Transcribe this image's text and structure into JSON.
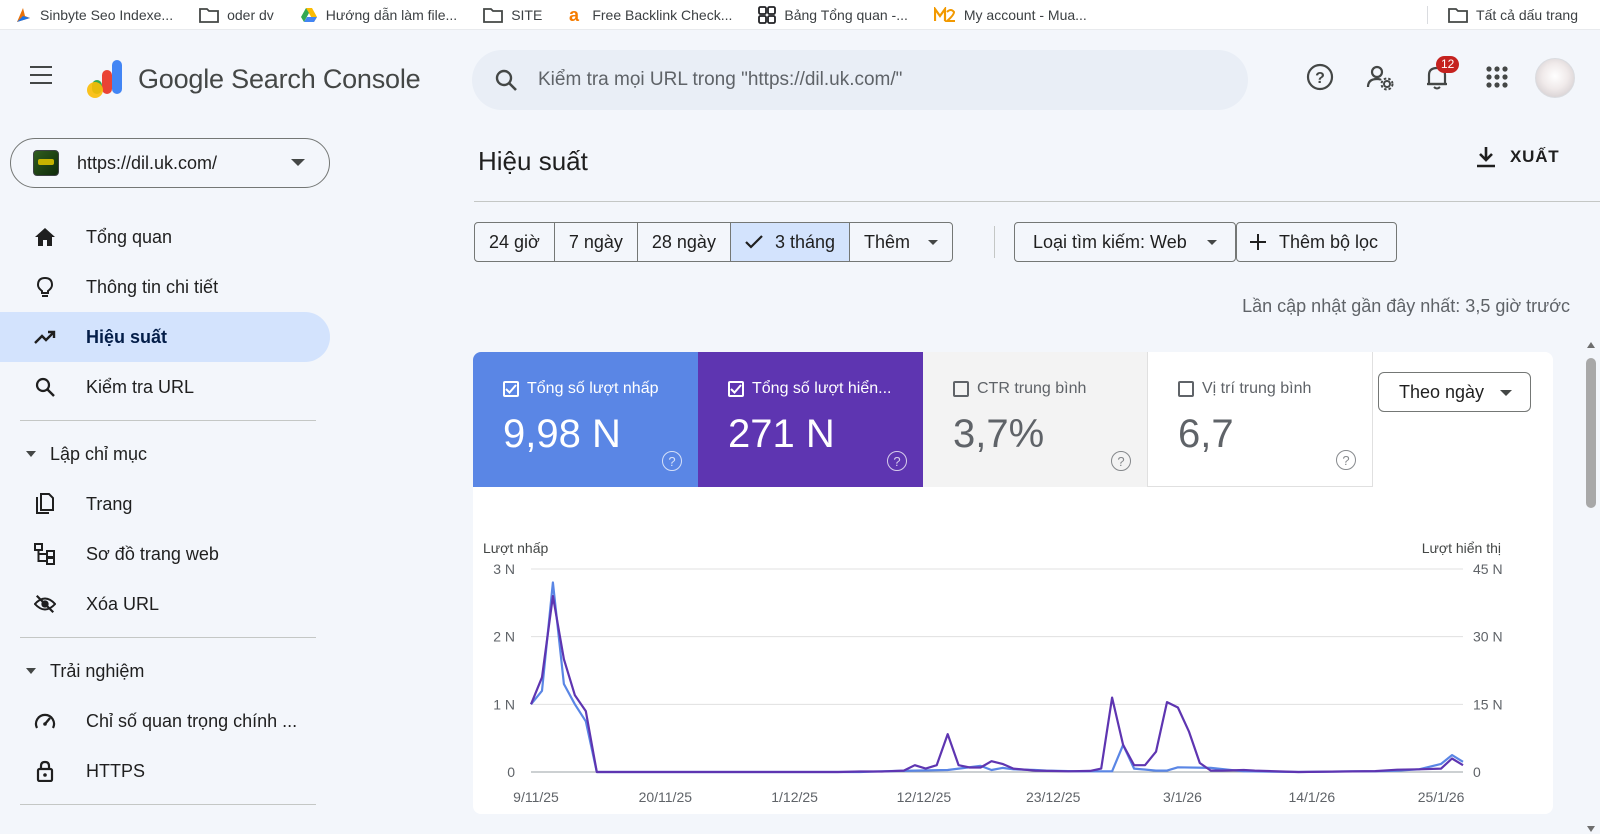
{
  "bookmarks": {
    "items": [
      {
        "label": "Sinbyte Seo Indexe...",
        "icon": "sinbyte-favicon"
      },
      {
        "label": "oder dv",
        "icon": "folder-icon"
      },
      {
        "label": "Hướng dẫn làm file...",
        "icon": "google-drive-icon"
      },
      {
        "label": "SITE",
        "icon": "folder-icon"
      },
      {
        "label": "Free Backlink Check...",
        "icon": "ahrefs-favicon"
      },
      {
        "label": "Bảng Tổng quan -...",
        "icon": "grid-favicon"
      },
      {
        "label": "My account - Mua...",
        "icon": "m2-favicon"
      }
    ],
    "all_bookmarks": "Tất cả dấu trang"
  },
  "header": {
    "app_name": "Google Search Console",
    "search_placeholder": "Kiểm tra mọi URL trong \"https://dil.uk.com/\"",
    "notification_count": "12"
  },
  "property": {
    "url": "https://dil.uk.com/"
  },
  "sidebar": {
    "items": [
      {
        "label": "Tổng quan",
        "icon": "home-icon"
      },
      {
        "label": "Thông tin chi tiết",
        "icon": "lightbulb-icon"
      },
      {
        "label": "Hiệu suất",
        "icon": "trending-up-icon",
        "active": true
      },
      {
        "label": "Kiểm tra URL",
        "icon": "search-icon"
      }
    ],
    "section_indexing": "Lập chỉ mục",
    "indexing_items": [
      {
        "label": "Trang",
        "icon": "pages-icon"
      },
      {
        "label": "Sơ đồ trang web",
        "icon": "sitemap-icon"
      },
      {
        "label": "Xóa URL",
        "icon": "eye-off-icon"
      }
    ],
    "section_experience": "Trải nghiệm",
    "experience_items": [
      {
        "label": "Chỉ số quan trọng chính ...",
        "icon": "speed-icon"
      },
      {
        "label": "HTTPS",
        "icon": "lock-icon"
      }
    ]
  },
  "main": {
    "title": "Hiệu suất",
    "export_label": "XUẤT",
    "date_chips": [
      "24 giờ",
      "7 ngày",
      "28 ngày",
      "3 tháng",
      "Thêm"
    ],
    "selected_chip": "3 tháng",
    "search_type": "Loại tìm kiếm: Web",
    "add_filter": "Thêm bộ lọc",
    "last_updated": "Lần cập nhật gần đây nhất: 3,5 giờ trước",
    "metrics": [
      {
        "label": "Tổng số lượt nhấp",
        "value": "9,98 N",
        "checked": true,
        "color": "#5a86e5"
      },
      {
        "label": "Tổng số lượt hiển...",
        "value": "271 N",
        "checked": true,
        "color": "#5e35b1"
      },
      {
        "label": "CTR trung bình",
        "value": "3,7%",
        "checked": false
      },
      {
        "label": "Vị trí trung bình",
        "value": "6,7",
        "checked": false
      }
    ],
    "granularity": "Theo ngày"
  },
  "chart_data": {
    "type": "line",
    "ylabel_left": "Lượt nhấp",
    "ylabel_right": "Lượt hiển thị",
    "y_left_ticks": [
      "0",
      "1 N",
      "2 N",
      "3 N"
    ],
    "y_left_range": [
      0,
      3000
    ],
    "y_right_ticks": [
      "0",
      "15 N",
      "30 N",
      "45 N"
    ],
    "y_right_range": [
      0,
      45000
    ],
    "x_ticks": [
      "9/11/25",
      "20/11/25",
      "1/12/25",
      "12/12/25",
      "23/12/25",
      "3/1/26",
      "14/1/26",
      "25/1/26"
    ],
    "x_start": "2025-11-09",
    "x_end": "2026-01-25",
    "grid": true,
    "series": [
      {
        "name": "Lượt nhấp",
        "axis": "left",
        "color": "#5a86e5",
        "points": [
          [
            0,
            1000
          ],
          [
            1,
            1200
          ],
          [
            2,
            2800
          ],
          [
            3,
            1300
          ],
          [
            4,
            1000
          ],
          [
            5,
            750
          ],
          [
            6,
            0
          ],
          [
            30,
            0
          ],
          [
            32,
            10
          ],
          [
            35,
            20
          ],
          [
            38,
            30
          ],
          [
            41,
            90
          ],
          [
            42,
            30
          ],
          [
            43,
            60
          ],
          [
            44,
            40
          ],
          [
            46,
            30
          ],
          [
            47,
            20
          ],
          [
            50,
            10
          ],
          [
            53,
            10
          ],
          [
            54,
            400
          ],
          [
            55,
            50
          ],
          [
            57,
            20
          ],
          [
            58,
            20
          ],
          [
            59,
            70
          ],
          [
            62,
            60
          ],
          [
            65,
            10
          ],
          [
            70,
            0
          ],
          [
            75,
            10
          ],
          [
            77,
            10
          ],
          [
            79,
            20
          ],
          [
            81,
            40
          ],
          [
            83,
            120
          ],
          [
            84,
            250
          ],
          [
            85,
            150
          ]
        ]
      },
      {
        "name": "Lượt hiển thị",
        "axis": "right",
        "color": "#5e35b1",
        "points": [
          [
            0,
            15000
          ],
          [
            1,
            21000
          ],
          [
            2,
            39000
          ],
          [
            3,
            25000
          ],
          [
            4,
            17000
          ],
          [
            5,
            13500
          ],
          [
            6,
            0
          ],
          [
            28,
            0
          ],
          [
            30,
            100
          ],
          [
            32,
            100
          ],
          [
            34,
            300
          ],
          [
            35,
            1500
          ],
          [
            36,
            750
          ],
          [
            37,
            1500
          ],
          [
            38,
            8400
          ],
          [
            39,
            1500
          ],
          [
            40,
            1000
          ],
          [
            41,
            1000
          ],
          [
            42,
            2400
          ],
          [
            43,
            1800
          ],
          [
            44,
            750
          ],
          [
            46,
            300
          ],
          [
            49,
            150
          ],
          [
            51,
            250
          ],
          [
            52,
            750
          ],
          [
            53,
            16500
          ],
          [
            54,
            6000
          ],
          [
            55,
            1500
          ],
          [
            56,
            1500
          ],
          [
            57,
            4500
          ],
          [
            58,
            15500
          ],
          [
            59,
            14300
          ],
          [
            60,
            9000
          ],
          [
            61,
            2000
          ],
          [
            62,
            300
          ],
          [
            63,
            300
          ],
          [
            65,
            450
          ],
          [
            66,
            300
          ],
          [
            70,
            0
          ],
          [
            74,
            100
          ],
          [
            77,
            200
          ],
          [
            79,
            500
          ],
          [
            81,
            600
          ],
          [
            83,
            750
          ],
          [
            84,
            3000
          ],
          [
            85,
            1500
          ]
        ]
      }
    ]
  }
}
